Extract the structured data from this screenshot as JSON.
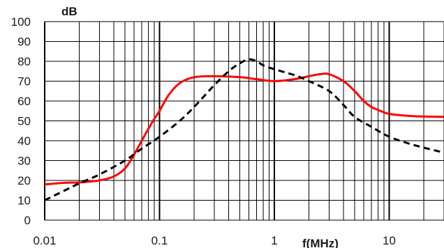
{
  "chart_data": {
    "type": "line",
    "xscale": "log",
    "xlim": [
      0.01,
      30
    ],
    "ylim": [
      0,
      100
    ],
    "ylabel": "dB",
    "xlabel": "f(MHz)",
    "grid": true,
    "x_tick_labels": [
      "0.01",
      "0.1",
      "1",
      "10"
    ],
    "x_tick_values": [
      0.01,
      0.1,
      1,
      10
    ],
    "y_tick_labels": [
      "0",
      "10",
      "20",
      "30",
      "40",
      "50",
      "60",
      "70",
      "80",
      "90",
      "100"
    ],
    "y_tick_values": [
      0,
      10,
      20,
      30,
      40,
      50,
      60,
      70,
      80,
      90,
      100
    ],
    "series": [
      {
        "style": "solid",
        "color": "#ff0000",
        "points": [
          [
            0.01,
            18
          ],
          [
            0.015,
            18.8
          ],
          [
            0.02,
            19
          ],
          [
            0.03,
            20
          ],
          [
            0.04,
            22
          ],
          [
            0.05,
            26
          ],
          [
            0.06,
            33
          ],
          [
            0.07,
            40
          ],
          [
            0.08,
            46
          ],
          [
            0.09,
            51
          ],
          [
            0.1,
            55
          ],
          [
            0.12,
            63
          ],
          [
            0.15,
            69
          ],
          [
            0.2,
            72
          ],
          [
            0.3,
            72.5
          ],
          [
            0.5,
            72
          ],
          [
            0.7,
            71
          ],
          [
            1,
            70
          ],
          [
            1.5,
            71
          ],
          [
            2,
            72.5
          ],
          [
            2.5,
            73.5
          ],
          [
            3,
            73.5
          ],
          [
            4,
            70
          ],
          [
            5,
            65
          ],
          [
            6,
            60
          ],
          [
            7,
            57
          ],
          [
            8,
            55.5
          ],
          [
            10,
            53.5
          ],
          [
            15,
            52.5
          ],
          [
            20,
            52.2
          ],
          [
            30,
            52
          ]
        ]
      },
      {
        "style": "dashed",
        "color": "#000000",
        "points": [
          [
            0.01,
            10
          ],
          [
            0.015,
            15
          ],
          [
            0.02,
            18.5
          ],
          [
            0.03,
            23
          ],
          [
            0.05,
            30
          ],
          [
            0.07,
            36
          ],
          [
            0.1,
            42
          ],
          [
            0.15,
            50
          ],
          [
            0.2,
            57
          ],
          [
            0.3,
            68
          ],
          [
            0.4,
            75
          ],
          [
            0.5,
            79
          ],
          [
            0.6,
            81
          ],
          [
            0.7,
            80
          ],
          [
            0.8,
            78
          ],
          [
            1,
            76
          ],
          [
            1.5,
            73
          ],
          [
            2,
            70
          ],
          [
            3,
            65
          ],
          [
            4,
            58
          ],
          [
            5,
            52
          ],
          [
            7,
            47
          ],
          [
            10,
            42
          ],
          [
            15,
            38.5
          ],
          [
            20,
            36.5
          ],
          [
            30,
            34
          ]
        ]
      }
    ]
  }
}
